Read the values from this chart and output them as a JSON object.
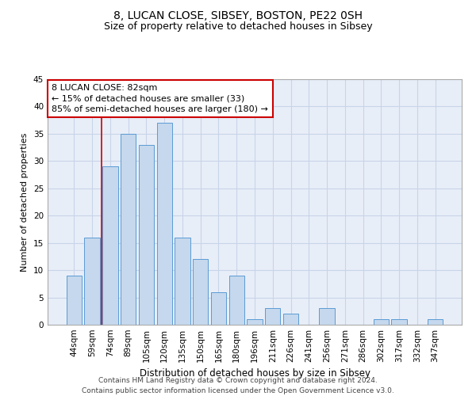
{
  "title1": "8, LUCAN CLOSE, SIBSEY, BOSTON, PE22 0SH",
  "title2": "Size of property relative to detached houses in Sibsey",
  "xlabel": "Distribution of detached houses by size in Sibsey",
  "ylabel": "Number of detached properties",
  "categories": [
    "44sqm",
    "59sqm",
    "74sqm",
    "89sqm",
    "105sqm",
    "120sqm",
    "135sqm",
    "150sqm",
    "165sqm",
    "180sqm",
    "196sqm",
    "211sqm",
    "226sqm",
    "241sqm",
    "256sqm",
    "271sqm",
    "286sqm",
    "302sqm",
    "317sqm",
    "332sqm",
    "347sqm"
  ],
  "values": [
    9,
    16,
    29,
    35,
    33,
    37,
    16,
    12,
    6,
    9,
    1,
    3,
    2,
    0,
    3,
    0,
    0,
    1,
    1,
    0,
    1
  ],
  "bar_color": "#c5d8ed",
  "bar_edge_color": "#5b9bd5",
  "grid_color": "#c8d4e8",
  "background_color": "#e8eef8",
  "vline_x": 1.5,
  "vline_color": "#cc0000",
  "annotation_text": "8 LUCAN CLOSE: 82sqm\n← 15% of detached houses are smaller (33)\n85% of semi-detached houses are larger (180) →",
  "annotation_box_facecolor": "#ffffff",
  "annotation_box_edgecolor": "#cc0000",
  "ylim": [
    0,
    45
  ],
  "yticks": [
    0,
    5,
    10,
    15,
    20,
    25,
    30,
    35,
    40,
    45
  ],
  "footer_text": "Contains HM Land Registry data © Crown copyright and database right 2024.\nContains public sector information licensed under the Open Government Licence v3.0.",
  "title1_fontsize": 10,
  "title2_fontsize": 9,
  "xlabel_fontsize": 8.5,
  "ylabel_fontsize": 8,
  "tick_fontsize": 7.5,
  "annotation_fontsize": 8,
  "footer_fontsize": 6.5
}
